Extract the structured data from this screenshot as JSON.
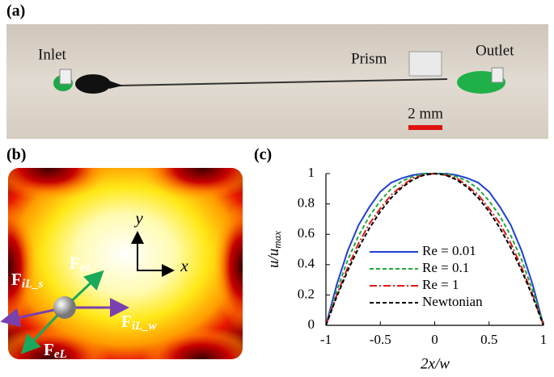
{
  "panel_a": {
    "label": "(a)",
    "inlet": "Inlet",
    "prism": "Prism",
    "outlet": "Outlet",
    "scale_bar": "2 mm"
  },
  "panel_b": {
    "label": "(b)",
    "axis_y": "y",
    "axis_x": "x",
    "forces": [
      {
        "symbol": "F",
        "subscript": "eL"
      },
      {
        "symbol": "F",
        "subscript": "iL_s"
      },
      {
        "symbol": "F",
        "subscript": "iL_w"
      },
      {
        "symbol": "F",
        "subscript": "eL"
      }
    ]
  },
  "chart_data": {
    "type": "line",
    "label": "(c)",
    "x_label": "2x/w",
    "y_label": {
      "text": "u/u",
      "subscript": "max"
    },
    "x": [
      -1,
      -0.9,
      -0.8,
      -0.7,
      -0.6,
      -0.5,
      -0.4,
      -0.3,
      -0.2,
      -0.1,
      0,
      0.1,
      0.2,
      0.3,
      0.4,
      0.5,
      0.6,
      0.7,
      0.8,
      0.9,
      1
    ],
    "xlim": [
      -1,
      1
    ],
    "xticks": [
      -1,
      -0.5,
      0,
      0.5,
      1
    ],
    "ylim": [
      0,
      1
    ],
    "yticks": [
      0,
      0.2,
      0.4,
      0.6,
      0.8,
      1
    ],
    "series": [
      {
        "name": "Re = 0.01",
        "color": "#1f3fd6",
        "style": "solid",
        "values": [
          0,
          0.27,
          0.49,
          0.66,
          0.78,
          0.88,
          0.94,
          0.97,
          0.99,
          1,
          1,
          1,
          0.99,
          0.97,
          0.94,
          0.88,
          0.78,
          0.66,
          0.49,
          0.27,
          0
        ]
      },
      {
        "name": "Re = 0.1",
        "color": "#22a83a",
        "style": "dashed",
        "values": [
          0,
          0.23,
          0.43,
          0.59,
          0.72,
          0.82,
          0.9,
          0.95,
          0.98,
          1,
          1,
          1,
          0.98,
          0.95,
          0.9,
          0.82,
          0.72,
          0.59,
          0.43,
          0.23,
          0
        ]
      },
      {
        "name": "Re = 1",
        "color": "#e01818",
        "style": "dashdot",
        "values": [
          0,
          0.2,
          0.38,
          0.54,
          0.67,
          0.77,
          0.86,
          0.92,
          0.97,
          0.99,
          1,
          0.99,
          0.97,
          0.92,
          0.86,
          0.77,
          0.67,
          0.54,
          0.38,
          0.2,
          0
        ]
      },
      {
        "name": "Newtonian",
        "color": "#000000",
        "style": "dashed",
        "values": [
          0,
          0.19,
          0.36,
          0.51,
          0.64,
          0.75,
          0.84,
          0.91,
          0.96,
          0.99,
          1,
          0.99,
          0.96,
          0.91,
          0.84,
          0.75,
          0.64,
          0.51,
          0.36,
          0.19,
          0
        ]
      }
    ]
  }
}
